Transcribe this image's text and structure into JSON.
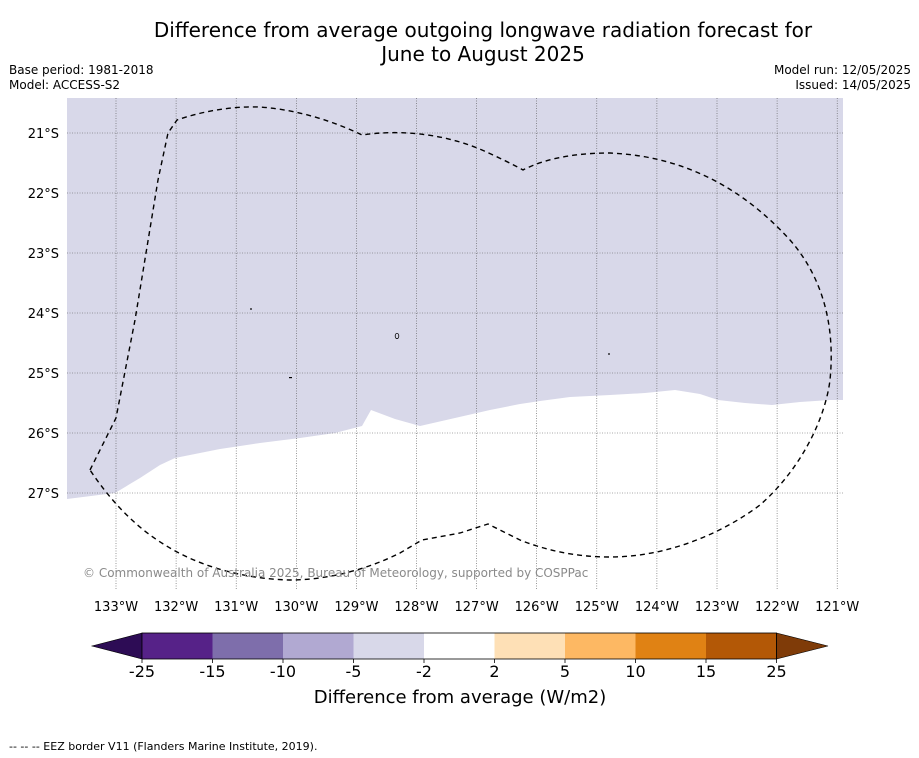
{
  "title_line1": "Difference from average outgoing longwave radiation forecast for",
  "title_line2": "June to August 2025",
  "meta_left": {
    "base_period": "Base period: 1981-2018",
    "model": "Model: ACCESS-S2"
  },
  "meta_right": {
    "model_run": "Model run: 12/05/2025",
    "issued": "Issued: 14/05/2025"
  },
  "map": {
    "lat_labels": [
      "21°S",
      "22°S",
      "23°S",
      "24°S",
      "25°S",
      "26°S",
      "27°S"
    ],
    "lon_labels": [
      "133°W",
      "132°W",
      "131°W",
      "130°W",
      "129°W",
      "128°W",
      "127°W",
      "126°W",
      "125°W",
      "124°W",
      "123°W",
      "122°W",
      "121°W"
    ],
    "copyright": "© Commonwealth of Australia 2025, Bureau of Meteorology, supported by COSPPac",
    "fill_category": "-5 to -2",
    "fill_color": "#d8d8e9",
    "border_style": "dashed"
  },
  "colorbar": {
    "ticks": [
      "-25",
      "-15",
      "-10",
      "-5",
      "-2",
      "2",
      "5",
      "10",
      "15",
      "25"
    ],
    "colors": [
      "#2d0c55",
      "#562288",
      "#7e6eab",
      "#b1a9d2",
      "#d8d8e9",
      "#ffffff",
      "#fee0b6",
      "#fdb863",
      "#e08214",
      "#b35806",
      "#7f3b08"
    ],
    "title": "Difference from average (W/m2)"
  },
  "footnote": "--  --  -- EEZ border V11 (Flanders Marine Institute, 2019)."
}
